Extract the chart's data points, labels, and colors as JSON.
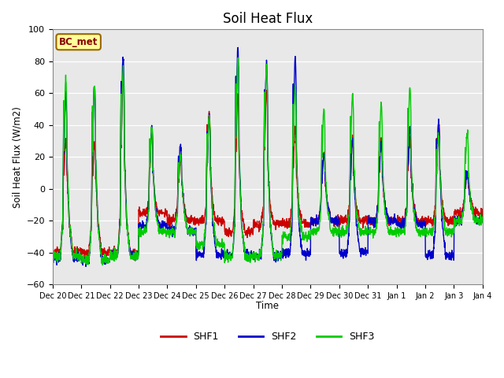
{
  "title": "Soil Heat Flux",
  "xlabel": "Time",
  "ylabel": "Soil Heat Flux (W/m2)",
  "ylim": [
    -60,
    100
  ],
  "bg_color": "#e8e8e8",
  "fig_color": "#ffffff",
  "annotation_text": "BC_met",
  "annotation_bg": "#ffff99",
  "annotation_border": "#996600",
  "annotation_text_color": "#880000",
  "line_colors": {
    "SHF1": "#cc0000",
    "SHF2": "#0000cc",
    "SHF3": "#00cc00"
  },
  "line_width": 1.0,
  "yticks": [
    -60,
    -40,
    -20,
    0,
    20,
    40,
    60,
    80,
    100
  ],
  "num_days": 15,
  "pph": 6,
  "days_keys": [
    "dec20",
    "dec21",
    "dec22",
    "dec23",
    "dec24",
    "dec25",
    "dec26",
    "dec27",
    "dec28",
    "dec29",
    "dec30",
    "dec31",
    "jan1",
    "jan2",
    "jan3"
  ],
  "tick_labels": [
    "Dec 20",
    "Dec 21",
    "Dec 22",
    "Dec 23",
    "Dec 24",
    "Dec 25",
    "Dec 26",
    "Dec 27",
    "Dec 28",
    "Dec 29",
    "Dec 30",
    "Dec 31",
    "Jan 1",
    "Jan 2",
    "Jan 3",
    "Jan 4"
  ],
  "peaks": {
    "dec20": {
      "shf1": 30,
      "shf2": 58,
      "shf3": 70,
      "trough1": -40,
      "trough2": -43,
      "trough3": -42
    },
    "dec21": {
      "shf1": 28,
      "shf2": 65,
      "shf3": 65,
      "trough1": -40,
      "trough2": -45,
      "trough3": -45
    },
    "dec22": {
      "shf1": 72,
      "shf2": 83,
      "shf3": 75,
      "trough1": -40,
      "trough2": -42,
      "trough3": -42
    },
    "dec23": {
      "shf1": 35,
      "shf2": 38,
      "shf3": 38,
      "trough1": -15,
      "trough2": -23,
      "trough3": -27
    },
    "dec24": {
      "shf1": 18,
      "shf2": 27,
      "shf3": 20,
      "trough1": -20,
      "trough2": -26,
      "trough3": -27
    },
    "dec25": {
      "shf1": 48,
      "shf2": 46,
      "shf3": 45,
      "trough1": -20,
      "trough2": -41,
      "trough3": -35
    },
    "dec26": {
      "shf1": 58,
      "shf2": 88,
      "shf3": 82,
      "trough1": -27,
      "trough2": -42,
      "trough3": -43
    },
    "dec27": {
      "shf1": 60,
      "shf2": 79,
      "shf3": 78,
      "trough1": -22,
      "trough2": -42,
      "trough3": -42
    },
    "dec28": {
      "shf1": 38,
      "shf2": 82,
      "shf3": 65,
      "trough1": -22,
      "trough2": -41,
      "trough3": -30
    },
    "dec29": {
      "shf1": 22,
      "shf2": 22,
      "shf3": 50,
      "trough1": -20,
      "trough2": -20,
      "trough3": -27
    },
    "dec30": {
      "shf1": 30,
      "shf2": 32,
      "shf3": 59,
      "trough1": -20,
      "trough2": -40,
      "trough3": -27
    },
    "dec31": {
      "shf1": 32,
      "shf2": 29,
      "shf3": 53,
      "trough1": -20,
      "trough2": -20,
      "trough3": -27
    },
    "jan1": {
      "shf1": 32,
      "shf2": 38,
      "shf3": 63,
      "trough1": -20,
      "trough2": -22,
      "trough3": -27
    },
    "jan2": {
      "shf1": 42,
      "shf2": 42,
      "shf3": 35,
      "trough1": -20,
      "trough2": -42,
      "trough3": -27
    },
    "jan3": {
      "shf1": 10,
      "shf2": 10,
      "shf3": 35,
      "trough1": -15,
      "trough2": -20,
      "trough3": -20
    }
  }
}
